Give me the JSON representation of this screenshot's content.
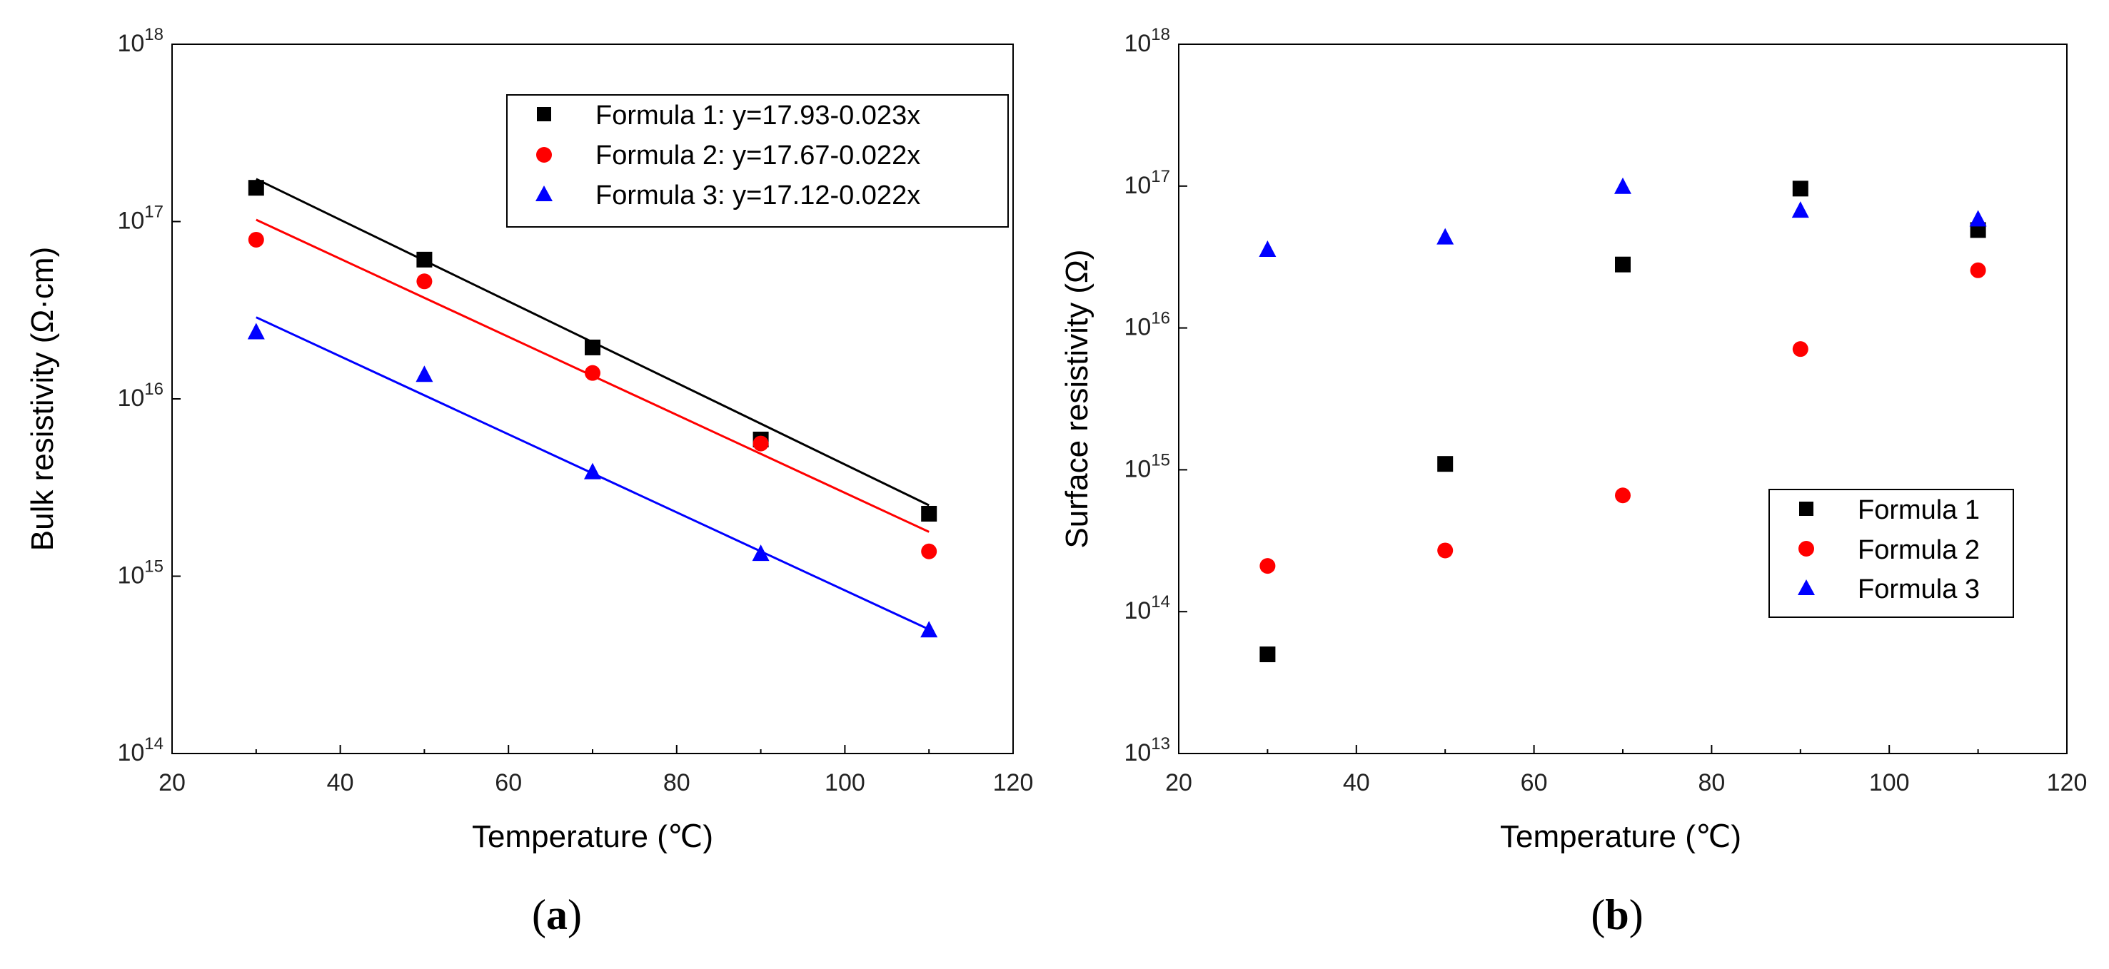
{
  "chart_data": [
    {
      "type": "scatter",
      "panel": "a",
      "caption": {
        "open": "(",
        "letter": "a",
        "close": ")"
      },
      "xlabel": "Temperature (℃)",
      "ylabel": "Bulk resistivity (Ω·cm)",
      "xlim": [
        20,
        120
      ],
      "ylim_log10": [
        14,
        18
      ],
      "yscale": "log",
      "x_ticks": [
        "20",
        "40",
        "60",
        "80",
        "100",
        "120"
      ],
      "y_ticks_exponents": [
        "14",
        "15",
        "16",
        "17",
        "18"
      ],
      "legend_position": "top-right",
      "x": [
        30,
        50,
        70,
        90,
        110
      ],
      "series": [
        {
          "name": "Formula 1: y=17.93-0.023x",
          "marker": "square",
          "color": "#000000",
          "values": [
            1.55e+17,
            6.1e+16,
            1.95e+16,
            5900000000000000.0,
            2250000000000000.0
          ],
          "fit": {
            "intercept": 17.93,
            "slope": -0.023
          }
        },
        {
          "name": "Formula 2: y=17.67-0.022x",
          "marker": "circle",
          "color": "#ff0000",
          "values": [
            7.9e+16,
            4.6e+16,
            1.4e+16,
            5600000000000000.0,
            1380000000000000.0
          ],
          "fit": {
            "intercept": 17.67,
            "slope": -0.022
          }
        },
        {
          "name": "Formula 3: y=17.12-0.022x",
          "marker": "triangle",
          "color": "#0000ff",
          "values": [
            2.4e+16,
            1.38e+16,
            3900000000000000.0,
            1350000000000000.0,
            500000000000000.0
          ],
          "fit": {
            "intercept": 17.12,
            "slope": -0.022
          }
        }
      ]
    },
    {
      "type": "scatter",
      "panel": "b",
      "caption": {
        "open": "(",
        "letter": "b",
        "close": ")"
      },
      "xlabel": "Temperature (℃)",
      "ylabel": "Surface resistivity (Ω)",
      "xlim": [
        20,
        120
      ],
      "ylim_log10": [
        13,
        18
      ],
      "yscale": "log",
      "x_ticks": [
        "20",
        "40",
        "60",
        "80",
        "100",
        "120"
      ],
      "y_ticks_exponents": [
        "13",
        "14",
        "15",
        "16",
        "17",
        "18"
      ],
      "legend_position": "bottom-right",
      "x": [
        30,
        50,
        70,
        90,
        110
      ],
      "series": [
        {
          "name": "Formula 1",
          "marker": "square",
          "color": "#000000",
          "values": [
            50000000000000.0,
            1100000000000000.0,
            2.8e+16,
            9.6e+16,
            4.9e+16
          ]
        },
        {
          "name": "Formula 2",
          "marker": "circle",
          "color": "#ff0000",
          "values": [
            210000000000000.0,
            270000000000000.0,
            660000000000000.0,
            7100000000000000.0,
            2.55e+16
          ]
        },
        {
          "name": "Formula 3",
          "marker": "triangle",
          "color": "#0000ff",
          "values": [
            3.6e+16,
            4.4e+16,
            1e+17,
            6.8e+16,
            5.9e+16
          ]
        }
      ]
    }
  ]
}
